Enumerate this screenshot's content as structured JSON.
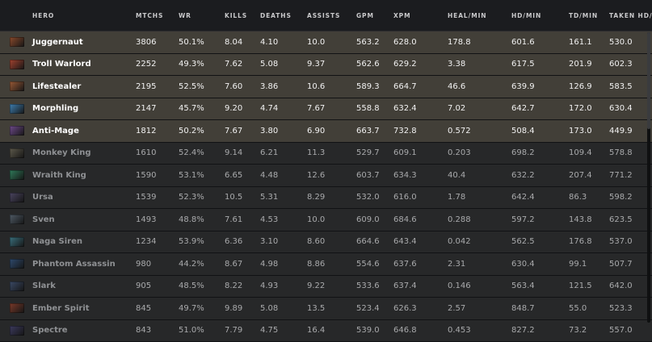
{
  "columns": [
    "HERO",
    "MTCHS",
    "WR",
    "KILLS",
    "DEATHS",
    "ASSISTS",
    "GPM",
    "XPM",
    "HEAL/MIN",
    "HD/MIN",
    "TD/MIN",
    "TAKEN HD/MIN"
  ],
  "rows": [
    {
      "name": "Juggernaut",
      "icon": "juggernaut-portrait-icon",
      "icon_color": "#8a4a2c",
      "mtchs": "3806",
      "wr": "50.1%",
      "kills": "8.04",
      "deaths": "4.10",
      "assists": "10.0",
      "gpm": "563.2",
      "xpm": "628.0",
      "heal": "178.8",
      "hd": "601.6",
      "td": "161.1",
      "taken": "530.0",
      "style": "hl"
    },
    {
      "name": "Troll Warlord",
      "icon": "troll-warlord-portrait-icon",
      "icon_color": "#a2422f",
      "mtchs": "2252",
      "wr": "49.3%",
      "kills": "7.62",
      "deaths": "5.08",
      "assists": "9.37",
      "gpm": "562.6",
      "xpm": "629.2",
      "heal": "3.38",
      "hd": "617.5",
      "td": "201.9",
      "taken": "602.3",
      "style": "hl"
    },
    {
      "name": "Lifestealer",
      "icon": "lifestealer-portrait-icon",
      "icon_color": "#9a5a36",
      "mtchs": "2195",
      "wr": "52.5%",
      "kills": "7.60",
      "deaths": "3.86",
      "assists": "10.6",
      "gpm": "589.3",
      "xpm": "664.7",
      "heal": "46.6",
      "hd": "639.9",
      "td": "126.9",
      "taken": "583.5",
      "style": "hl"
    },
    {
      "name": "Morphling",
      "icon": "morphling-portrait-icon",
      "icon_color": "#3f7fb0",
      "mtchs": "2147",
      "wr": "45.7%",
      "kills": "9.20",
      "deaths": "4.74",
      "assists": "7.67",
      "gpm": "558.8",
      "xpm": "632.4",
      "heal": "7.02",
      "hd": "642.7",
      "td": "172.0",
      "taken": "630.4",
      "style": "hl"
    },
    {
      "name": "Anti-Mage",
      "icon": "anti-mage-portrait-icon",
      "icon_color": "#6e4a8a",
      "mtchs": "1812",
      "wr": "50.2%",
      "kills": "7.67",
      "deaths": "3.80",
      "assists": "6.90",
      "gpm": "663.7",
      "xpm": "732.8",
      "heal": "0.572",
      "hd": "508.4",
      "td": "173.0",
      "taken": "449.9",
      "style": "hl"
    },
    {
      "name": "Monkey King",
      "icon": "monkey-king-portrait-icon",
      "icon_color": "#5e5a4c",
      "mtchs": "1610",
      "wr": "52.4%",
      "kills": "9.14",
      "deaths": "6.21",
      "assists": "11.3",
      "gpm": "529.7",
      "xpm": "609.1",
      "heal": "0.203",
      "hd": "698.2",
      "td": "109.4",
      "taken": "578.8",
      "style": "dim"
    },
    {
      "name": "Wraith King",
      "icon": "wraith-king-portrait-icon",
      "icon_color": "#2f7a5a",
      "mtchs": "1590",
      "wr": "53.1%",
      "kills": "6.65",
      "deaths": "4.48",
      "assists": "12.6",
      "gpm": "603.7",
      "xpm": "634.3",
      "heal": "40.4",
      "hd": "632.2",
      "td": "207.4",
      "taken": "771.2",
      "style": "dim"
    },
    {
      "name": "Ursa",
      "icon": "ursa-portrait-icon",
      "icon_color": "#4a4460",
      "mtchs": "1539",
      "wr": "52.3%",
      "kills": "10.5",
      "deaths": "5.31",
      "assists": "8.29",
      "gpm": "532.0",
      "xpm": "616.0",
      "heal": "1.78",
      "hd": "642.4",
      "td": "86.3",
      "taken": "598.2",
      "style": "dim"
    },
    {
      "name": "Sven",
      "icon": "sven-portrait-icon",
      "icon_color": "#4f5b66",
      "mtchs": "1493",
      "wr": "48.8%",
      "kills": "7.61",
      "deaths": "4.53",
      "assists": "10.0",
      "gpm": "609.0",
      "xpm": "684.6",
      "heal": "0.288",
      "hd": "597.2",
      "td": "143.8",
      "taken": "623.5",
      "style": "dim"
    },
    {
      "name": "Naga Siren",
      "icon": "naga-siren-portrait-icon",
      "icon_color": "#3a6f7c",
      "mtchs": "1234",
      "wr": "53.9%",
      "kills": "6.36",
      "deaths": "3.10",
      "assists": "8.60",
      "gpm": "664.6",
      "xpm": "643.4",
      "heal": "0.042",
      "hd": "562.5",
      "td": "176.8",
      "taken": "537.0",
      "style": "dim"
    },
    {
      "name": "Phantom Assassin",
      "icon": "phantom-assassin-portrait-icon",
      "icon_color": "#2e4a6e",
      "mtchs": "980",
      "wr": "44.2%",
      "kills": "8.67",
      "deaths": "4.98",
      "assists": "8.86",
      "gpm": "554.6",
      "xpm": "637.6",
      "heal": "2.31",
      "hd": "630.4",
      "td": "99.1",
      "taken": "507.7",
      "style": "dim"
    },
    {
      "name": "Slark",
      "icon": "slark-portrait-icon",
      "icon_color": "#3b4a66",
      "mtchs": "905",
      "wr": "48.5%",
      "kills": "8.22",
      "deaths": "4.93",
      "assists": "9.22",
      "gpm": "533.6",
      "xpm": "637.4",
      "heal": "0.146",
      "hd": "563.4",
      "td": "121.5",
      "taken": "642.0",
      "style": "dim"
    },
    {
      "name": "Ember Spirit",
      "icon": "ember-spirit-portrait-icon",
      "icon_color": "#7a3a2a",
      "mtchs": "845",
      "wr": "49.7%",
      "kills": "9.89",
      "deaths": "5.08",
      "assists": "13.5",
      "gpm": "523.4",
      "xpm": "626.3",
      "heal": "2.57",
      "hd": "848.7",
      "td": "55.0",
      "taken": "523.3",
      "style": "dim"
    },
    {
      "name": "Spectre",
      "icon": "spectre-portrait-icon",
      "icon_color": "#3c3a5e",
      "mtchs": "843",
      "wr": "51.0%",
      "kills": "7.79",
      "deaths": "4.75",
      "assists": "16.4",
      "gpm": "539.0",
      "xpm": "646.8",
      "heal": "0.453",
      "hd": "827.2",
      "td": "73.2",
      "taken": "557.0",
      "style": "dim"
    }
  ]
}
